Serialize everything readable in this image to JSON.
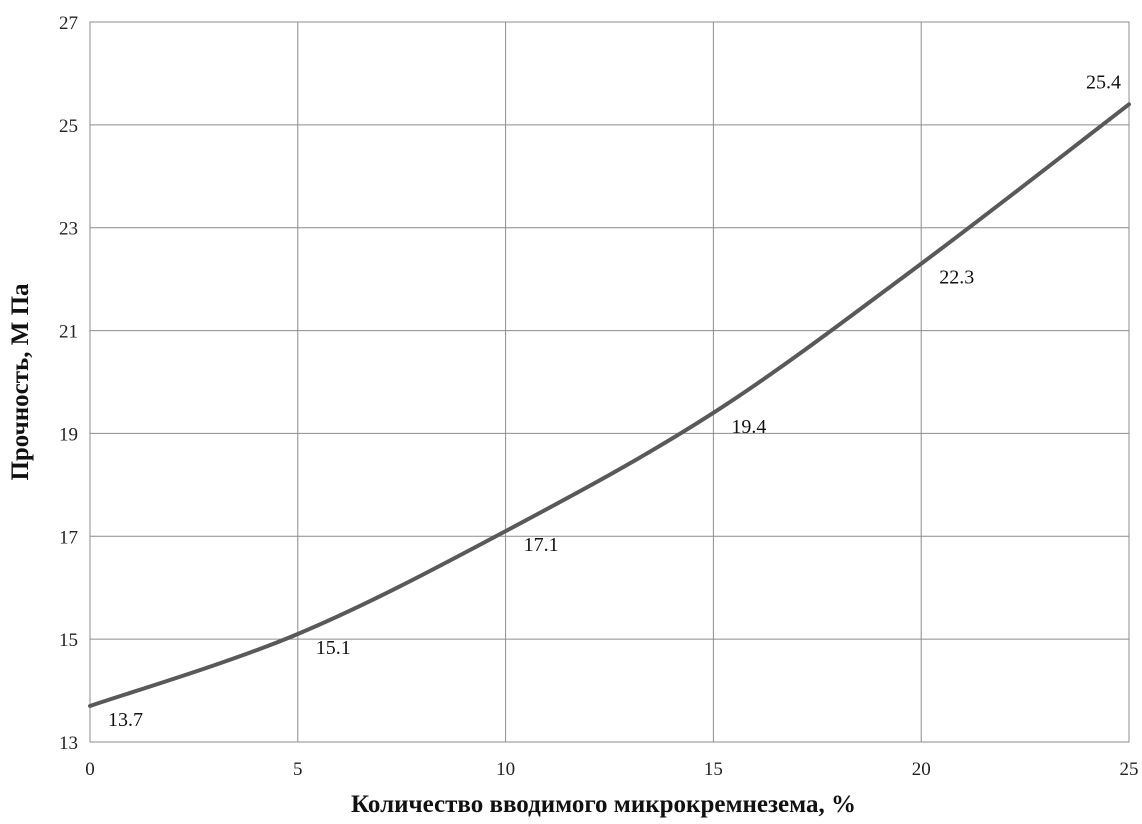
{
  "chart_data": {
    "type": "line",
    "title": "",
    "xlabel": "Количество вводимого микрокремнезема, %",
    "ylabel": "Прочность, М Па",
    "xlim": [
      0,
      25
    ],
    "ylim": [
      13,
      27
    ],
    "xticks": [
      0,
      5,
      10,
      15,
      20,
      25
    ],
    "yticks": [
      13,
      15,
      17,
      19,
      21,
      23,
      25,
      27
    ],
    "grid": true,
    "legend": "none",
    "series": [
      {
        "color": "#595959",
        "x": [
          0,
          5,
          10,
          15,
          20,
          25
        ],
        "values": [
          13.7,
          15.1,
          17.1,
          19.4,
          22.3,
          25.4
        ],
        "labels": [
          "13.7",
          "15.1",
          "17.1",
          "19.4",
          "22.3",
          "25.4"
        ]
      }
    ]
  }
}
